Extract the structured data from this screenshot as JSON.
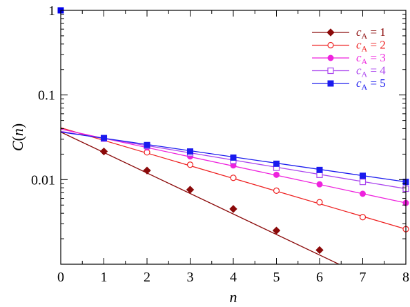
{
  "chart_data": {
    "type": "line",
    "title": "",
    "xlabel": "n",
    "ylabel_main": "C",
    "ylabel_arg": "n",
    "x_scale": "linear",
    "y_scale": "log",
    "xlim": [
      0,
      8
    ],
    "ylim": [
      0.001,
      1
    ],
    "x_ticks": [
      0,
      1,
      2,
      3,
      4,
      5,
      6,
      7,
      8
    ],
    "x_tick_labels": [
      "0",
      "1",
      "2",
      "3",
      "4",
      "5",
      "6",
      "7",
      "8"
    ],
    "y_ticks": [
      0.01,
      0.1,
      1
    ],
    "y_tick_labels": [
      "0.01",
      "0.1",
      "1"
    ],
    "grid": false,
    "legend_position": "top-right",
    "shared_point": {
      "x": 0,
      "y": 1,
      "marker": "square-filled",
      "color": "#0000ee"
    },
    "series": [
      {
        "name": "c_A = 1",
        "label_main": "c",
        "label_sub": "A",
        "label_rest": " = 1",
        "color": "#8b0a0a",
        "marker": "diamond-filled",
        "x": [
          1,
          2,
          3,
          4,
          5,
          6
        ],
        "y": [
          0.0215,
          0.0128,
          0.0076,
          0.0045,
          0.0025,
          0.00147
        ],
        "fit": {
          "x": [
            0,
            6.45
          ],
          "y": [
            0.0365,
            0.001
          ]
        }
      },
      {
        "name": "c_A = 2",
        "label_main": "c",
        "label_sub": "A",
        "label_rest": " = 2",
        "color": "#ee2020",
        "marker": "circle-open",
        "x": [
          1,
          2,
          3,
          4,
          5,
          6,
          7,
          8
        ],
        "y": [
          0.0305,
          0.021,
          0.015,
          0.0105,
          0.0074,
          0.0054,
          0.0036,
          0.0026
        ],
        "fit": {
          "x": [
            0,
            8
          ],
          "y": [
            0.041,
            0.0026
          ]
        }
      },
      {
        "name": "c_A = 3",
        "label_main": "c",
        "label_sub": "A",
        "label_rest": " = 3",
        "color": "#ee22dd",
        "marker": "circle-filled",
        "x": [
          1,
          2,
          3,
          4,
          5,
          6,
          7,
          8
        ],
        "y": [
          0.0305,
          0.024,
          0.0188,
          0.0147,
          0.0114,
          0.0088,
          0.0068,
          0.0053
        ],
        "fit": {
          "x": [
            0,
            8
          ],
          "y": [
            0.0395,
            0.0053
          ]
        }
      },
      {
        "name": "c_A = 4",
        "label_main": "c",
        "label_sub": "A",
        "label_rest": " = 4",
        "color": "#aa44ee",
        "marker": "square-open",
        "x": [
          1,
          2,
          3,
          4,
          5,
          6,
          7,
          8
        ],
        "y": [
          0.0305,
          0.025,
          0.0205,
          0.0167,
          0.0138,
          0.0114,
          0.0094,
          0.0078
        ],
        "fit": {
          "x": [
            0,
            8
          ],
          "y": [
            0.0372,
            0.0078
          ]
        }
      },
      {
        "name": "c_A = 5",
        "label_main": "c",
        "label_sub": "A",
        "label_rest": " = 5",
        "color": "#1a1aee",
        "marker": "square-filled",
        "x": [
          1,
          2,
          3,
          4,
          5,
          6,
          7,
          8
        ],
        "y": [
          0.031,
          0.0256,
          0.0215,
          0.0182,
          0.0154,
          0.013,
          0.0111,
          0.0094
        ],
        "fit": {
          "x": [
            0,
            8
          ],
          "y": [
            0.0365,
            0.0094
          ]
        }
      }
    ]
  }
}
